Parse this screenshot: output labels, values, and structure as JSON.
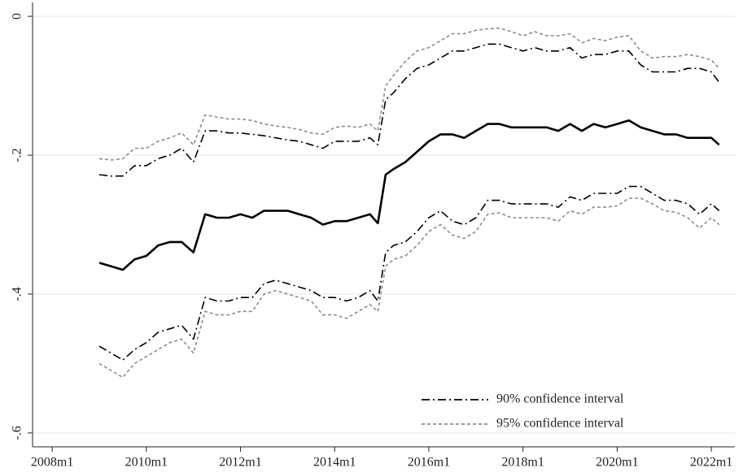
{
  "chart_data": {
    "type": "line",
    "x": [
      "2009m1",
      "2009m4",
      "2009m7",
      "2009m10",
      "2010m1",
      "2010m4",
      "2010m7",
      "2010m10",
      "2011m1",
      "2011m4",
      "2011m7",
      "2011m10",
      "2012m1",
      "2012m4",
      "2012m7",
      "2012m10",
      "2013m1",
      "2013m4",
      "2013m7",
      "2013m10",
      "2014m1",
      "2014m4",
      "2014m7",
      "2014m10",
      "2014m12",
      "2015m2",
      "2015m4",
      "2015m7",
      "2015m10",
      "2016m1",
      "2016m4",
      "2016m7",
      "2016m10",
      "2017m1",
      "2017m4",
      "2017m7",
      "2017m10",
      "2018m1",
      "2018m4",
      "2018m7",
      "2018m10",
      "2019m1",
      "2019m4",
      "2019m7",
      "2019m10",
      "2020m1",
      "2020m4",
      "2020m7",
      "2020m10",
      "2021m1",
      "2021m4",
      "2021m7",
      "2021m10",
      "2022m1",
      "2022m3"
    ],
    "series": [
      {
        "color": "#000000",
        "values": [
          -0.355,
          -0.36,
          -0.365,
          -0.35,
          -0.345,
          -0.33,
          -0.325,
          -0.325,
          -0.34,
          -0.285,
          -0.29,
          -0.29,
          -0.285,
          -0.29,
          -0.28,
          -0.28,
          -0.28,
          -0.285,
          -0.29,
          -0.3,
          -0.295,
          -0.295,
          -0.29,
          -0.285,
          -0.298,
          -0.228,
          -0.22,
          -0.21,
          -0.195,
          -0.18,
          -0.17,
          -0.17,
          -0.175,
          -0.165,
          -0.155,
          -0.155,
          -0.16,
          -0.16,
          -0.16,
          -0.16,
          -0.165,
          -0.155,
          -0.165,
          -0.155,
          -0.16,
          -0.155,
          -0.15,
          -0.16,
          -0.165,
          -0.17,
          -0.17,
          -0.175,
          -0.175,
          -0.175,
          -0.185
        ]
      }
    ],
    "bands": [
      {
        "name": "90% confidence interval",
        "color": "#000000",
        "dash": "10 4 2 4",
        "upper": [
          -0.228,
          -0.23,
          -0.23,
          -0.215,
          -0.215,
          -0.205,
          -0.2,
          -0.19,
          -0.21,
          -0.165,
          -0.165,
          -0.168,
          -0.168,
          -0.17,
          -0.172,
          -0.175,
          -0.178,
          -0.18,
          -0.185,
          -0.19,
          -0.18,
          -0.18,
          -0.18,
          -0.175,
          -0.185,
          -0.12,
          -0.11,
          -0.09,
          -0.075,
          -0.07,
          -0.06,
          -0.05,
          -0.05,
          -0.045,
          -0.04,
          -0.04,
          -0.045,
          -0.05,
          -0.045,
          -0.05,
          -0.05,
          -0.045,
          -0.06,
          -0.055,
          -0.055,
          -0.05,
          -0.05,
          -0.07,
          -0.08,
          -0.08,
          -0.08,
          -0.075,
          -0.075,
          -0.08,
          -0.095
        ],
        "lower": [
          -0.475,
          -0.485,
          -0.495,
          -0.48,
          -0.47,
          -0.455,
          -0.45,
          -0.445,
          -0.465,
          -0.405,
          -0.41,
          -0.41,
          -0.405,
          -0.405,
          -0.385,
          -0.38,
          -0.385,
          -0.39,
          -0.395,
          -0.405,
          -0.405,
          -0.41,
          -0.405,
          -0.395,
          -0.41,
          -0.34,
          -0.33,
          -0.325,
          -0.31,
          -0.29,
          -0.28,
          -0.295,
          -0.3,
          -0.29,
          -0.265,
          -0.265,
          -0.27,
          -0.27,
          -0.27,
          -0.27,
          -0.275,
          -0.26,
          -0.265,
          -0.255,
          -0.255,
          -0.255,
          -0.245,
          -0.245,
          -0.255,
          -0.265,
          -0.265,
          -0.27,
          -0.285,
          -0.27,
          -0.28
        ]
      },
      {
        "name": "95% confidence interval",
        "color": "#8c8c8c",
        "dash": "4 3",
        "upper": [
          -0.205,
          -0.207,
          -0.205,
          -0.19,
          -0.19,
          -0.18,
          -0.175,
          -0.168,
          -0.185,
          -0.142,
          -0.145,
          -0.148,
          -0.148,
          -0.15,
          -0.155,
          -0.158,
          -0.16,
          -0.163,
          -0.168,
          -0.17,
          -0.16,
          -0.158,
          -0.16,
          -0.155,
          -0.165,
          -0.1,
          -0.085,
          -0.065,
          -0.05,
          -0.045,
          -0.035,
          -0.025,
          -0.025,
          -0.02,
          -0.018,
          -0.017,
          -0.022,
          -0.028,
          -0.022,
          -0.028,
          -0.028,
          -0.025,
          -0.038,
          -0.032,
          -0.035,
          -0.03,
          -0.028,
          -0.05,
          -0.06,
          -0.058,
          -0.058,
          -0.055,
          -0.058,
          -0.063,
          -0.075
        ],
        "lower": [
          -0.5,
          -0.51,
          -0.52,
          -0.5,
          -0.49,
          -0.48,
          -0.47,
          -0.465,
          -0.485,
          -0.425,
          -0.43,
          -0.43,
          -0.425,
          -0.425,
          -0.4,
          -0.395,
          -0.4,
          -0.405,
          -0.41,
          -0.43,
          -0.43,
          -0.435,
          -0.425,
          -0.415,
          -0.425,
          -0.36,
          -0.35,
          -0.345,
          -0.33,
          -0.31,
          -0.3,
          -0.315,
          -0.32,
          -0.31,
          -0.285,
          -0.283,
          -0.29,
          -0.29,
          -0.29,
          -0.29,
          -0.295,
          -0.28,
          -0.285,
          -0.275,
          -0.275,
          -0.273,
          -0.262,
          -0.262,
          -0.27,
          -0.28,
          -0.282,
          -0.29,
          -0.305,
          -0.29,
          -0.3
        ]
      }
    ],
    "xlim": [
      "2007m8",
      "2022m7"
    ],
    "xticks": [
      "2008m1",
      "2010m1",
      "2012m1",
      "2014m1",
      "2016m1",
      "2018m1",
      "2020m1",
      "2022m1"
    ],
    "ylim": [
      -0.62,
      0.02
    ],
    "yticks": [
      {
        "value": 0,
        "label": "0"
      },
      {
        "value": -0.2,
        "label": "-.2"
      },
      {
        "value": -0.4,
        "label": "-.4"
      },
      {
        "value": -0.6,
        "label": "-.6"
      }
    ],
    "grid": true,
    "legend": "lower right"
  }
}
